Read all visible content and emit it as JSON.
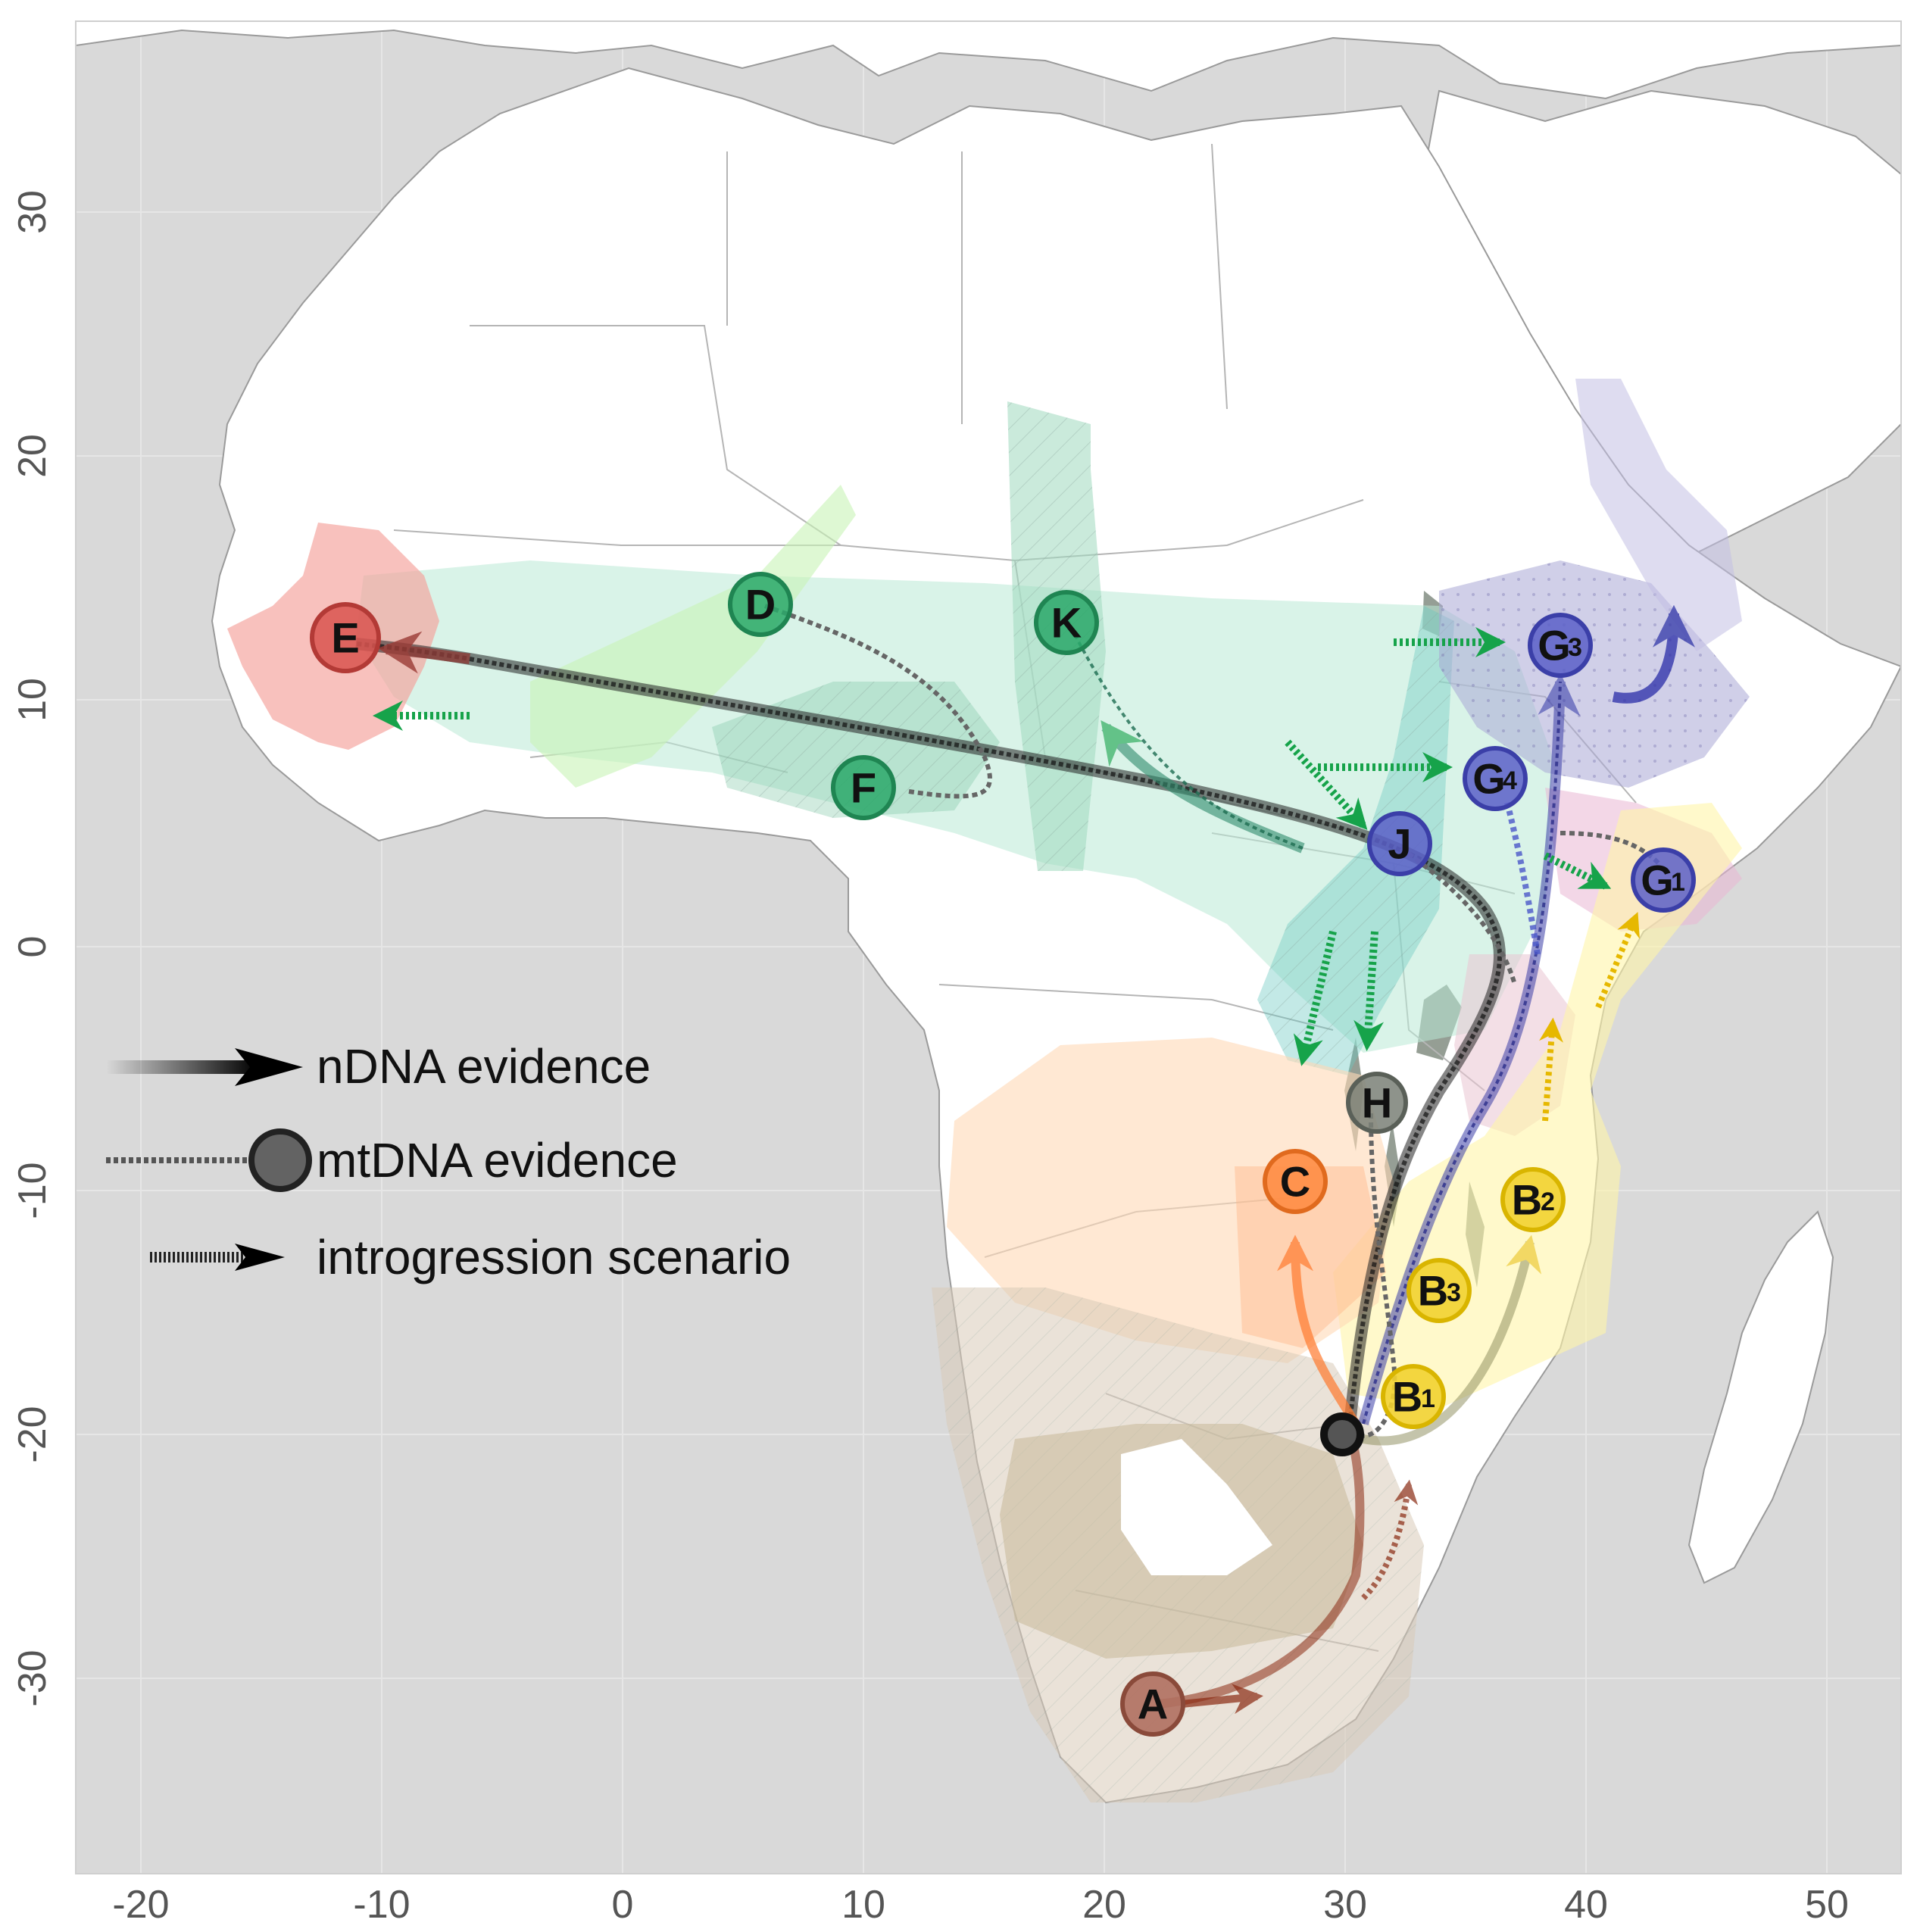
{
  "map": {
    "x_ticks": [
      "-20",
      "-10",
      "0",
      "10",
      "20",
      "30",
      "40",
      "50"
    ],
    "y_ticks": [
      "30",
      "20",
      "10",
      "0",
      "-10",
      "-20",
      "-30"
    ]
  },
  "legend": {
    "ndna": "nDNA evidence",
    "mtdna": "mtDNA evidence",
    "introgression": "introgression scenario"
  },
  "nodes": {
    "A": {
      "letter": "A",
      "sub": ""
    },
    "B1": {
      "letter": "B",
      "sub": "1"
    },
    "B2": {
      "letter": "B",
      "sub": "2"
    },
    "B3": {
      "letter": "B",
      "sub": "3"
    },
    "C": {
      "letter": "C",
      "sub": ""
    },
    "D": {
      "letter": "D",
      "sub": ""
    },
    "E": {
      "letter": "E",
      "sub": ""
    },
    "F": {
      "letter": "F",
      "sub": ""
    },
    "G1": {
      "letter": "G",
      "sub": "1"
    },
    "G3": {
      "letter": "G",
      "sub": "3"
    },
    "G4": {
      "letter": "G",
      "sub": "4"
    },
    "H": {
      "letter": "H",
      "sub": ""
    },
    "J": {
      "letter": "J",
      "sub": ""
    },
    "K": {
      "letter": "K",
      "sub": ""
    }
  },
  "colors": {
    "sea": "#d9d9d9",
    "land": "#ffffff",
    "green": "#2aa86a",
    "red": "#d9534f",
    "orange": "#ff8c42",
    "yellow": "#f2d230",
    "blue": "#5a5fc8",
    "brown": "#a0604a",
    "grey": "#7a8077",
    "dark": "#222222"
  }
}
